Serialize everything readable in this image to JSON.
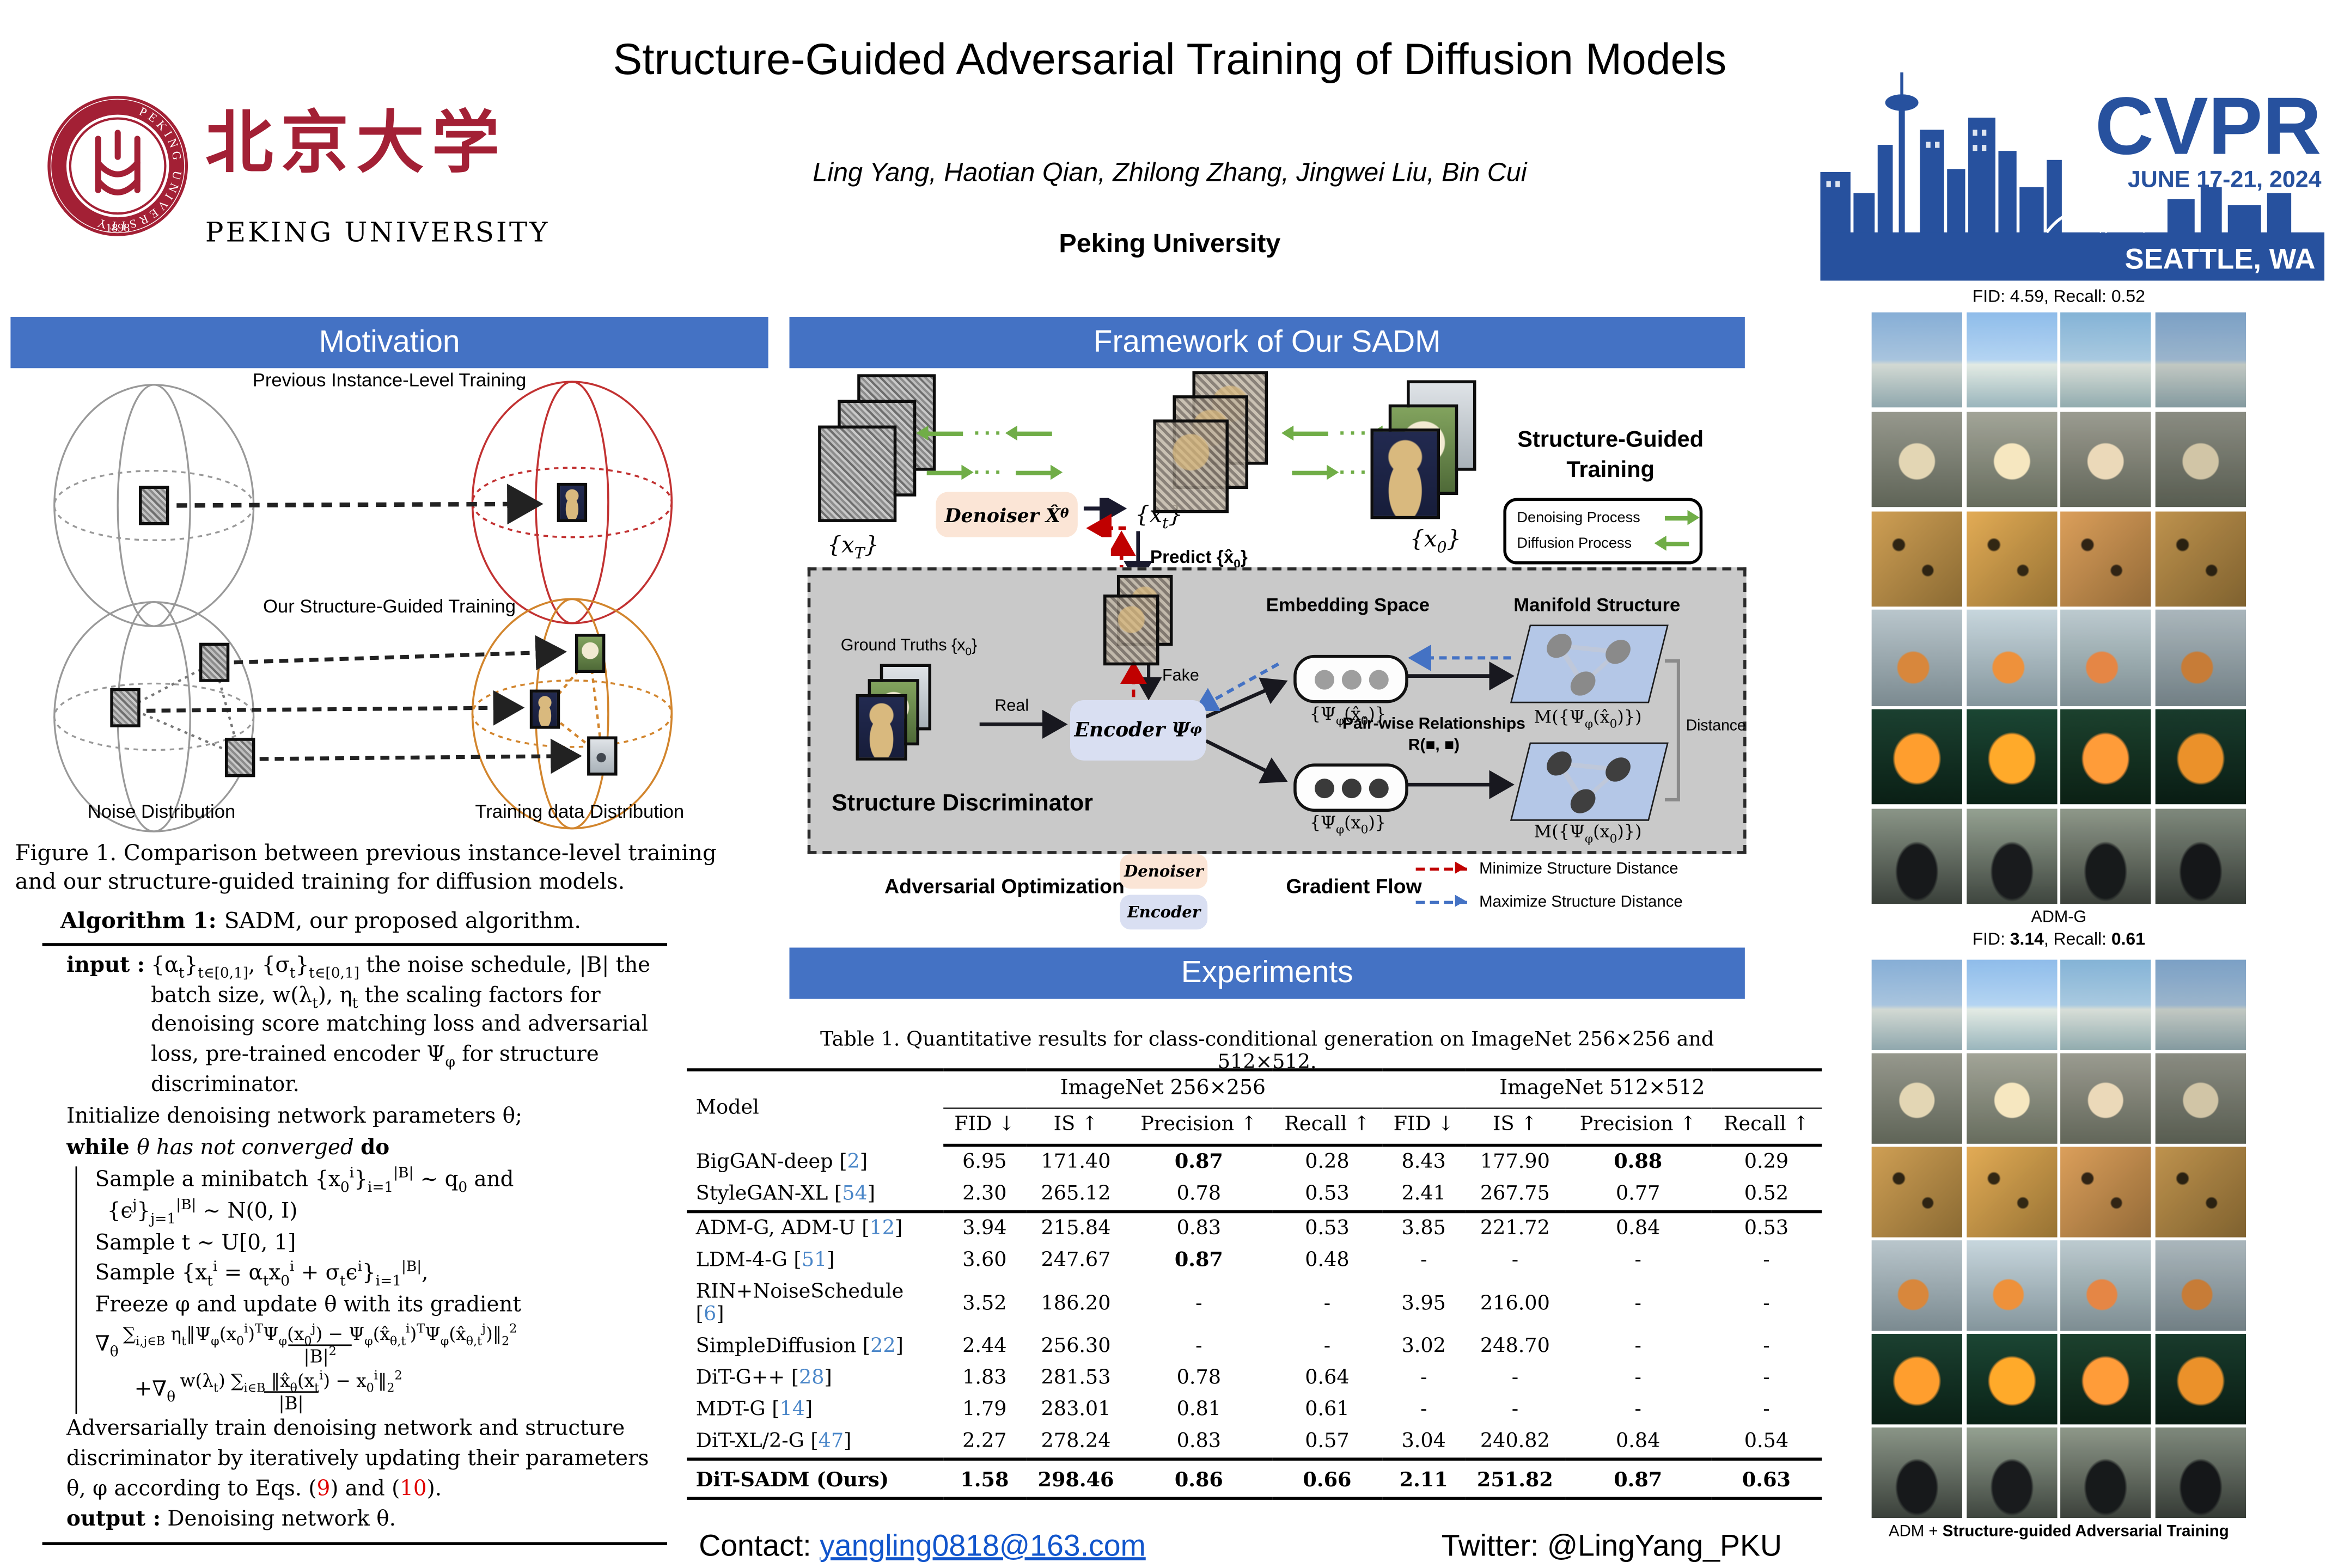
{
  "header": {
    "title": "Structure-Guided Adversarial Training of Diffusion Models",
    "authors": "Ling Yang, Haotian Qian, Zhilong Zhang, Jingwei Liu, Bin Cui",
    "affiliation": "Peking University",
    "pku_logo": {
      "chinese": "北京大学",
      "english": "PEKING UNIVERSITY",
      "seal_ring": "PEKING UNIVERSITY",
      "seal_year": "1898"
    },
    "cvpr_logo": {
      "name": "CVPR",
      "dates": "JUNE 17-21, 2024",
      "location": "SEATTLE, WA"
    }
  },
  "section_titles": {
    "motivation": "Motivation",
    "framework": "Framework of Our SADM",
    "experiments": "Experiments"
  },
  "motivation": {
    "previous_label": "Previous Instance-Level Training",
    "ours_label": "Our Structure-Guided Training",
    "noise_label": "Noise Distribution",
    "data_label": "Training data Distribution",
    "caption": "Figure 1. Comparison between previous instance-level training and our structure-guided training for diffusion models."
  },
  "algorithm": {
    "title_segments": [
      {
        "t": "Algorithm 1: ",
        "b": true
      },
      {
        "t": "SADM, our proposed algorithm."
      }
    ],
    "input_label": "input  :",
    "input_math": "{α_{t}}_{t∈[0,1]}, {σ_{t}}_{t∈[0,1]} the noise schedule, |B| the batch size, w(λ_{t}), η_{t} the scaling factors for denoising score matching loss and adversarial loss, pre-trained encoder Ψ_{φ} for structure discriminator.",
    "init_line": "Initialize denoising network parameters θ;",
    "while_segments": [
      {
        "t": "while ",
        "b": true
      },
      {
        "t": "θ has not converged ",
        "i": true
      },
      {
        "t": "do",
        "b": true
      }
    ],
    "sample_minibatch": "Sample a minibatch {x_{0}^{i}}_{i=1}^{|B|} ∼ q_{0} and",
    "sample_noise": "{ϵ^{j}}_{j=1}^{|B|} ∼ N(0, I)",
    "sample_t": "Sample t ∼ U[0, 1]",
    "sample_xt": "Sample {x_{t}^{i} = α_{t}x_{0}^{i} + σ_{t}ϵ^{i}}_{i=1}^{|B|},",
    "freeze_line": "Freeze φ and update θ with its gradient",
    "grad1_prefix": "∇_{θ}",
    "grad1_num": "∑_{i,j∈B} η_{t}‖Ψ_{φ}(x_{0}^{i})^{T}Ψ_{φ}(x_{0}^{j}) − Ψ_{φ}(x̂_{θ,t}^{i})^{T}Ψ_{φ}(x̂_{θ,t}^{j})‖_{2}^{2}",
    "grad1_den": "|B|^{2}",
    "grad2_prefix": "+∇_{θ}",
    "grad2_num": "w(λ_{t}) ∑_{i∈B} ‖x̂_{θ}(x_{t}^{i}) − x_{0}^{i}‖_{2}^{2}",
    "grad2_den": "|B|",
    "adv_segments": [
      {
        "t": "Adversarially train denoising network and structure discriminator by iteratively updating their parameters θ, φ according to Eqs. ("
      },
      {
        "t": "9",
        "c": "red"
      },
      {
        "t": ") and ("
      },
      {
        "t": "10",
        "c": "red"
      },
      {
        "t": ")."
      }
    ],
    "output_label": "output :",
    "output_text": "Denoising network θ."
  },
  "framework": {
    "x_T": "{x_{T}}",
    "x_t": "{x_{t}}",
    "x_0": "{x_{0}}",
    "denoiser_box": "Denoiser X̂_{θ}",
    "predict_label": "Predict {x̂_{0}}",
    "sg_line1": "Structure-Guided",
    "sg_line2": "Training",
    "legend_denoising": "Denoising Process",
    "legend_diffusion": "Diffusion Process",
    "ground_truths": "Ground Truths {x_{0}}",
    "fake_label": "Fake",
    "real_label": "Real",
    "encoder_box": "Encoder Ψ_{φ}",
    "embedding_header": "Embedding Space",
    "manifold_header": "Manifold Structure",
    "emb_fake": "{Ψ_{φ}(x̂_{0})}",
    "emb_real": "{Ψ_{φ}(x_{0})}",
    "manifold_fake": "M({Ψ_{φ}(x̂_{0})})",
    "manifold_real": "M({Ψ_{φ}(x_{0})})",
    "pairwise_line1": "Pair-wise Relationships",
    "pairwise_line2": "R(■, ■)",
    "distance_label": "Distance",
    "discriminator_label": "Structure Discriminator",
    "adv_opt_label": "Adversarial Optimization",
    "denoiser_chip": "Denoiser",
    "encoder_chip": "Encoder",
    "gradient_flow_label": "Gradient Flow",
    "legend_minimize": "Minimize Structure Distance",
    "legend_maximize": "Maximize Structure Distance"
  },
  "table": {
    "caption": "Table 1. Quantitative results for class-conditional generation on ImageNet 256×256 and 512×512.",
    "model_header": "Model",
    "groups": [
      "ImageNet 256×256",
      "ImageNet 512×512"
    ],
    "sub_columns": [
      "FID ↓",
      "IS ↑",
      "Precision ↑",
      "Recall ↑"
    ],
    "rows": [
      {
        "model": "BigGAN-deep",
        "ref": "2",
        "v": [
          "6.95",
          "171.40",
          "0.87",
          "0.28",
          "8.43",
          "177.90",
          "0.88",
          "0.29"
        ],
        "bold": [
          2,
          6
        ]
      },
      {
        "model": "StyleGAN-XL",
        "ref": "54",
        "v": [
          "2.30",
          "265.12",
          "0.78",
          "0.53",
          "2.41",
          "267.75",
          "0.77",
          "0.52"
        ],
        "bold": [],
        "sep_after": true
      },
      {
        "model": "ADM-G, ADM-U",
        "ref": "12",
        "v": [
          "3.94",
          "215.84",
          "0.83",
          "0.53",
          "3.85",
          "221.72",
          "0.84",
          "0.53"
        ],
        "bold": []
      },
      {
        "model": "LDM-4-G",
        "ref": "51",
        "v": [
          "3.60",
          "247.67",
          "0.87",
          "0.48",
          "-",
          "-",
          "-",
          "-"
        ],
        "bold": [
          2
        ]
      },
      {
        "model": "RIN+NoiseSchedule",
        "ref": "6",
        "v": [
          "3.52",
          "186.20",
          "-",
          "-",
          "3.95",
          "216.00",
          "-",
          "-"
        ],
        "bold": []
      },
      {
        "model": "SimpleDiffusion",
        "ref": "22",
        "v": [
          "2.44",
          "256.30",
          "-",
          "-",
          "3.02",
          "248.70",
          "-",
          "-"
        ],
        "bold": []
      },
      {
        "model": "DiT-G++",
        "ref": "28",
        "v": [
          "1.83",
          "281.53",
          "0.78",
          "0.64",
          "-",
          "-",
          "-",
          "-"
        ],
        "bold": []
      },
      {
        "model": "MDT-G",
        "ref": "14",
        "v": [
          "1.79",
          "283.01",
          "0.81",
          "0.61",
          "-",
          "-",
          "-",
          "-"
        ],
        "bold": []
      },
      {
        "model": "DiT-XL/2-G",
        "ref": "47",
        "v": [
          "2.27",
          "278.24",
          "0.83",
          "0.57",
          "3.04",
          "240.82",
          "0.84",
          "0.54"
        ],
        "bold": [],
        "sep_after": true
      },
      {
        "model": "DiT-SADM (Ours)",
        "ref": null,
        "v": [
          "1.58",
          "298.46",
          "0.86",
          "0.66",
          "2.11",
          "251.82",
          "0.87",
          "0.63"
        ],
        "bold": "all",
        "ours": true
      }
    ]
  },
  "right_panel": {
    "fid_top": "FID: 4.59, Recall: 0.52",
    "adm_label": "ADM-G",
    "fid_bottom_segments": [
      {
        "t": "FID: "
      },
      {
        "t": "3.14",
        "b": true
      },
      {
        "t": ", Recall: "
      },
      {
        "t": "0.61",
        "b": true
      }
    ],
    "bottom_label_segments": [
      {
        "t": "ADM + "
      },
      {
        "t": "Structure-guided Adversarial Training",
        "b": true
      }
    ],
    "grid_cols": 4,
    "grid_rows": [
      {
        "name": "sailing-ships",
        "bg": "linear-gradient(180deg,#86aed6 0%,#a8c4de 50%,#d2d9d3 55%,#8fa7ad 100%)"
      },
      {
        "name": "shih-tzu-dogs",
        "bg": "radial-gradient(circle at 50% 52%,#e3d6b4 0 26%,rgba(0,0,0,0) 28%),linear-gradient(180deg,#96988d,#5f6457)"
      },
      {
        "name": "leopards",
        "bg": "radial-gradient(circle at 30% 35%,#2e2413 0 6%,rgba(0,0,0,0) 8%),radial-gradient(circle at 62% 62%,#2e2413 0 6%,rgba(0,0,0,0) 8%),linear-gradient(135deg,#cf9f54,#8a6a33)"
      },
      {
        "name": "brambling-birds",
        "bg": "radial-gradient(circle at 46% 60%,#d8873c 0 20%,rgba(0,0,0,0) 22%),linear-gradient(180deg,#b9c6cc,#7b8a90)"
      },
      {
        "name": "goldfish",
        "bg": "radial-gradient(ellipse at 50% 52%,#ff9e2e 0 34%,rgba(0,0,0,0) 38%),linear-gradient(180deg,#1b4030,#0a1f15)"
      },
      {
        "name": "steam-trains",
        "bg": "radial-gradient(ellipse at 50% 66%,#17191b 0 30%,rgba(0,0,0,0) 34%),linear-gradient(180deg,#8a9587,#3a403a)"
      }
    ]
  },
  "footer": {
    "contact_prefix": "Contact: ",
    "contact_email": "yangling0818@163.com",
    "twitter": "Twitter: @LingYang_PKU"
  },
  "colors": {
    "section_bar": "#4472C4",
    "cvpr_blue": "#27519E",
    "pku_red": "#A32035",
    "denoiser_box": "#FBE5D6",
    "encoder_box": "#D9DFF2",
    "manifold": "#B4C7E7",
    "minimize_red": "#C00000",
    "maximize_blue": "#4472C4",
    "process_green": "#70AD47",
    "ref_blue": "#4a86c8",
    "email_blue": "#1155CC"
  }
}
